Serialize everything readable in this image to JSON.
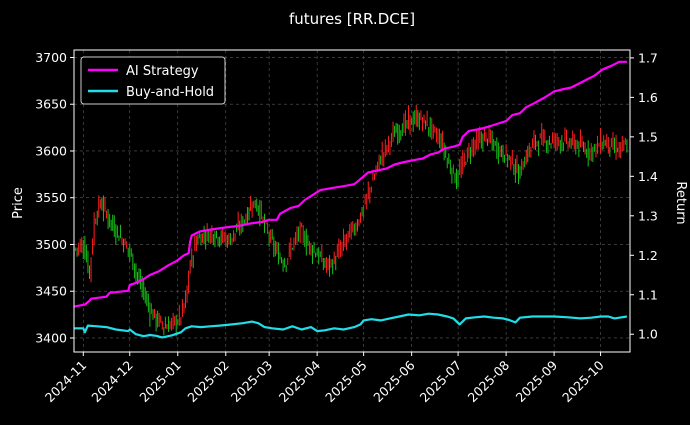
{
  "chart_data": {
    "type": "line",
    "title": "futures [RR.DCE]",
    "xlabel": "",
    "ylabel": "Price",
    "y2label": "Return",
    "x_range": [
      "2024-10-26",
      "2025-10-20"
    ],
    "ylim": [
      3385,
      3708
    ],
    "y2lim": [
      0.955,
      1.72
    ],
    "x_tick_labels": [
      "2024-11",
      "2024-12",
      "2025-01",
      "2025-02",
      "2025-03",
      "2025-04",
      "2025-05",
      "2025-06",
      "2025-07",
      "2025-08",
      "2025-09",
      "2025-10"
    ],
    "x_tick_dates": [
      "2024-11-01",
      "2024-12-01",
      "2025-01-01",
      "2025-02-01",
      "2025-03-01",
      "2025-04-01",
      "2025-05-01",
      "2025-06-01",
      "2025-07-01",
      "2025-08-01",
      "2025-09-01",
      "2025-10-01"
    ],
    "y_ticks": [
      3400,
      3450,
      3500,
      3550,
      3600,
      3650,
      3700
    ],
    "y2_ticks": [
      1.0,
      1.1,
      1.2,
      1.3,
      1.4,
      1.5,
      1.6,
      1.7
    ],
    "grid": true,
    "legend_position": "top-left",
    "price_series": {
      "name": "Price",
      "up_color": "#ff2020",
      "down_color": "#18c018",
      "points": [
        [
          "2024-10-26",
          3495
        ],
        [
          "2024-11-01",
          3500
        ],
        [
          "2024-11-05",
          3470
        ],
        [
          "2024-11-08",
          3525
        ],
        [
          "2024-11-12",
          3545
        ],
        [
          "2024-11-16",
          3532
        ],
        [
          "2024-11-20",
          3520
        ],
        [
          "2024-11-26",
          3505
        ],
        [
          "2024-12-01",
          3492
        ],
        [
          "2024-12-05",
          3470
        ],
        [
          "2024-12-10",
          3448
        ],
        [
          "2024-12-14",
          3430
        ],
        [
          "2024-12-18",
          3420
        ],
        [
          "2024-12-24",
          3412
        ],
        [
          "2024-12-28",
          3415
        ],
        [
          "2025-01-02",
          3420
        ],
        [
          "2025-01-06",
          3440
        ],
        [
          "2025-01-09",
          3480
        ],
        [
          "2025-01-13",
          3505
        ],
        [
          "2025-01-18",
          3510
        ],
        [
          "2025-01-23",
          3512
        ],
        [
          "2025-01-28",
          3508
        ],
        [
          "2025-02-03",
          3505
        ],
        [
          "2025-02-08",
          3515
        ],
        [
          "2025-02-14",
          3530
        ],
        [
          "2025-02-18",
          3545
        ],
        [
          "2025-02-22",
          3540
        ],
        [
          "2025-02-26",
          3520
        ],
        [
          "2025-03-02",
          3505
        ],
        [
          "2025-03-06",
          3490
        ],
        [
          "2025-03-11",
          3480
        ],
        [
          "2025-03-16",
          3500
        ],
        [
          "2025-03-21",
          3515
        ],
        [
          "2025-03-26",
          3500
        ],
        [
          "2025-04-01",
          3490
        ],
        [
          "2025-04-06",
          3478
        ],
        [
          "2025-04-11",
          3480
        ],
        [
          "2025-04-16",
          3495
        ],
        [
          "2025-04-21",
          3510
        ],
        [
          "2025-04-26",
          3520
        ],
        [
          "2025-05-01",
          3540
        ],
        [
          "2025-05-06",
          3565
        ],
        [
          "2025-05-11",
          3590
        ],
        [
          "2025-05-16",
          3605
        ],
        [
          "2025-05-21",
          3620
        ],
        [
          "2025-05-26",
          3625
        ],
        [
          "2025-05-31",
          3632
        ],
        [
          "2025-06-05",
          3635
        ],
        [
          "2025-06-10",
          3630
        ],
        [
          "2025-06-15",
          3620
        ],
        [
          "2025-06-20",
          3610
        ],
        [
          "2025-06-25",
          3585
        ],
        [
          "2025-06-30",
          3570
        ],
        [
          "2025-07-05",
          3590
        ],
        [
          "2025-07-10",
          3605
        ],
        [
          "2025-07-15",
          3612
        ],
        [
          "2025-07-20",
          3615
        ],
        [
          "2025-07-25",
          3605
        ],
        [
          "2025-07-30",
          3598
        ],
        [
          "2025-08-04",
          3590
        ],
        [
          "2025-08-09",
          3575
        ],
        [
          "2025-08-14",
          3595
        ],
        [
          "2025-08-19",
          3610
        ],
        [
          "2025-08-24",
          3612
        ],
        [
          "2025-08-29",
          3610
        ],
        [
          "2025-09-03",
          3612
        ],
        [
          "2025-09-08",
          3610
        ],
        [
          "2025-09-13",
          3608
        ],
        [
          "2025-09-18",
          3605
        ],
        [
          "2025-09-23",
          3600
        ],
        [
          "2025-09-28",
          3604
        ],
        [
          "2025-10-03",
          3610
        ],
        [
          "2025-10-08",
          3605
        ],
        [
          "2025-10-13",
          3600
        ],
        [
          "2025-10-18",
          3608
        ]
      ]
    },
    "series": [
      {
        "name": "AI Strategy",
        "color": "#ff00ff",
        "points": [
          [
            "2024-10-26",
            1.07
          ],
          [
            "2024-11-02",
            1.075
          ],
          [
            "2024-11-05",
            1.085
          ],
          [
            "2024-11-06",
            1.09
          ],
          [
            "2024-11-16",
            1.095
          ],
          [
            "2024-11-18",
            1.105
          ],
          [
            "2024-11-30",
            1.11
          ],
          [
            "2024-12-01",
            1.125
          ],
          [
            "2024-12-05",
            1.13
          ],
          [
            "2024-12-10",
            1.14
          ],
          [
            "2024-12-14",
            1.15
          ],
          [
            "2024-12-20",
            1.16
          ],
          [
            "2024-12-26",
            1.175
          ],
          [
            "2024-12-31",
            1.185
          ],
          [
            "2025-01-05",
            1.2
          ],
          [
            "2025-01-08",
            1.205
          ],
          [
            "2025-01-09",
            1.235
          ],
          [
            "2025-01-10",
            1.25
          ],
          [
            "2025-01-15",
            1.26
          ],
          [
            "2025-01-22",
            1.265
          ],
          [
            "2025-01-31",
            1.27
          ],
          [
            "2025-02-10",
            1.275
          ],
          [
            "2025-02-16",
            1.28
          ],
          [
            "2025-02-25",
            1.285
          ],
          [
            "2025-03-01",
            1.29
          ],
          [
            "2025-03-06",
            1.29
          ],
          [
            "2025-03-08",
            1.305
          ],
          [
            "2025-03-15",
            1.32
          ],
          [
            "2025-03-20",
            1.325
          ],
          [
            "2025-03-24",
            1.34
          ],
          [
            "2025-03-28",
            1.35
          ],
          [
            "2025-04-03",
            1.365
          ],
          [
            "2025-04-10",
            1.37
          ],
          [
            "2025-04-18",
            1.375
          ],
          [
            "2025-04-25",
            1.38
          ],
          [
            "2025-04-28",
            1.39
          ],
          [
            "2025-05-01",
            1.4
          ],
          [
            "2025-05-04",
            1.41
          ],
          [
            "2025-05-10",
            1.415
          ],
          [
            "2025-05-16",
            1.42
          ],
          [
            "2025-05-21",
            1.43
          ],
          [
            "2025-05-26",
            1.435
          ],
          [
            "2025-06-01",
            1.44
          ],
          [
            "2025-06-08",
            1.445
          ],
          [
            "2025-06-13",
            1.455
          ],
          [
            "2025-06-18",
            1.46
          ],
          [
            "2025-06-22",
            1.47
          ],
          [
            "2025-06-28",
            1.475
          ],
          [
            "2025-07-02",
            1.48
          ],
          [
            "2025-07-04",
            1.5
          ],
          [
            "2025-07-08",
            1.515
          ],
          [
            "2025-07-15",
            1.52
          ],
          [
            "2025-07-20",
            1.525
          ],
          [
            "2025-07-24",
            1.53
          ],
          [
            "2025-07-28",
            1.535
          ],
          [
            "2025-08-01",
            1.54
          ],
          [
            "2025-08-05",
            1.555
          ],
          [
            "2025-08-10",
            1.56
          ],
          [
            "2025-08-14",
            1.575
          ],
          [
            "2025-08-19",
            1.585
          ],
          [
            "2025-08-26",
            1.6
          ],
          [
            "2025-09-01",
            1.615
          ],
          [
            "2025-09-06",
            1.62
          ],
          [
            "2025-09-12",
            1.625
          ],
          [
            "2025-09-17",
            1.635
          ],
          [
            "2025-09-22",
            1.645
          ],
          [
            "2025-09-27",
            1.655
          ],
          [
            "2025-10-02",
            1.67
          ],
          [
            "2025-10-08",
            1.68
          ],
          [
            "2025-10-13",
            1.69
          ],
          [
            "2025-10-18",
            1.69
          ]
        ]
      },
      {
        "name": "Buy-and-Hold",
        "color": "#22dde8",
        "points": [
          [
            "2024-10-26",
            1.015
          ],
          [
            "2024-11-01",
            1.015
          ],
          [
            "2024-11-02",
            1.005
          ],
          [
            "2024-11-04",
            1.022
          ],
          [
            "2024-11-10",
            1.02
          ],
          [
            "2024-11-16",
            1.018
          ],
          [
            "2024-11-22",
            1.012
          ],
          [
            "2024-11-30",
            1.008
          ],
          [
            "2024-12-01",
            1.012
          ],
          [
            "2024-12-05",
            1.0
          ],
          [
            "2024-12-10",
            0.995
          ],
          [
            "2024-12-14",
            0.998
          ],
          [
            "2024-12-18",
            0.996
          ],
          [
            "2024-12-22",
            0.992
          ],
          [
            "2024-12-28",
            0.997
          ],
          [
            "2025-01-03",
            1.005
          ],
          [
            "2025-01-06",
            1.015
          ],
          [
            "2025-01-10",
            1.02
          ],
          [
            "2025-01-16",
            1.018
          ],
          [
            "2025-01-22",
            1.02
          ],
          [
            "2025-01-28",
            1.022
          ],
          [
            "2025-02-05",
            1.025
          ],
          [
            "2025-02-12",
            1.028
          ],
          [
            "2025-02-18",
            1.032
          ],
          [
            "2025-02-22",
            1.028
          ],
          [
            "2025-02-26",
            1.018
          ],
          [
            "2025-03-03",
            1.015
          ],
          [
            "2025-03-10",
            1.012
          ],
          [
            "2025-03-16",
            1.02
          ],
          [
            "2025-03-22",
            1.012
          ],
          [
            "2025-03-28",
            1.018
          ],
          [
            "2025-04-01",
            1.008
          ],
          [
            "2025-04-06",
            1.01
          ],
          [
            "2025-04-12",
            1.015
          ],
          [
            "2025-04-18",
            1.012
          ],
          [
            "2025-04-25",
            1.018
          ],
          [
            "2025-04-29",
            1.025
          ],
          [
            "2025-05-01",
            1.035
          ],
          [
            "2025-05-06",
            1.038
          ],
          [
            "2025-05-12",
            1.035
          ],
          [
            "2025-05-18",
            1.04
          ],
          [
            "2025-05-24",
            1.045
          ],
          [
            "2025-05-30",
            1.05
          ],
          [
            "2025-06-06",
            1.048
          ],
          [
            "2025-06-12",
            1.052
          ],
          [
            "2025-06-18",
            1.05
          ],
          [
            "2025-06-24",
            1.045
          ],
          [
            "2025-06-28",
            1.04
          ],
          [
            "2025-07-02",
            1.025
          ],
          [
            "2025-07-06",
            1.04
          ],
          [
            "2025-07-12",
            1.043
          ],
          [
            "2025-07-18",
            1.045
          ],
          [
            "2025-07-24",
            1.042
          ],
          [
            "2025-07-30",
            1.04
          ],
          [
            "2025-08-03",
            1.036
          ],
          [
            "2025-08-07",
            1.03
          ],
          [
            "2025-08-10",
            1.042
          ],
          [
            "2025-08-18",
            1.045
          ],
          [
            "2025-08-25",
            1.045
          ],
          [
            "2025-09-01",
            1.045
          ],
          [
            "2025-09-10",
            1.043
          ],
          [
            "2025-09-18",
            1.04
          ],
          [
            "2025-09-25",
            1.042
          ],
          [
            "2025-10-01",
            1.045
          ],
          [
            "2025-10-06",
            1.045
          ],
          [
            "2025-10-10",
            1.04
          ],
          [
            "2025-10-18",
            1.045
          ]
        ]
      }
    ]
  }
}
